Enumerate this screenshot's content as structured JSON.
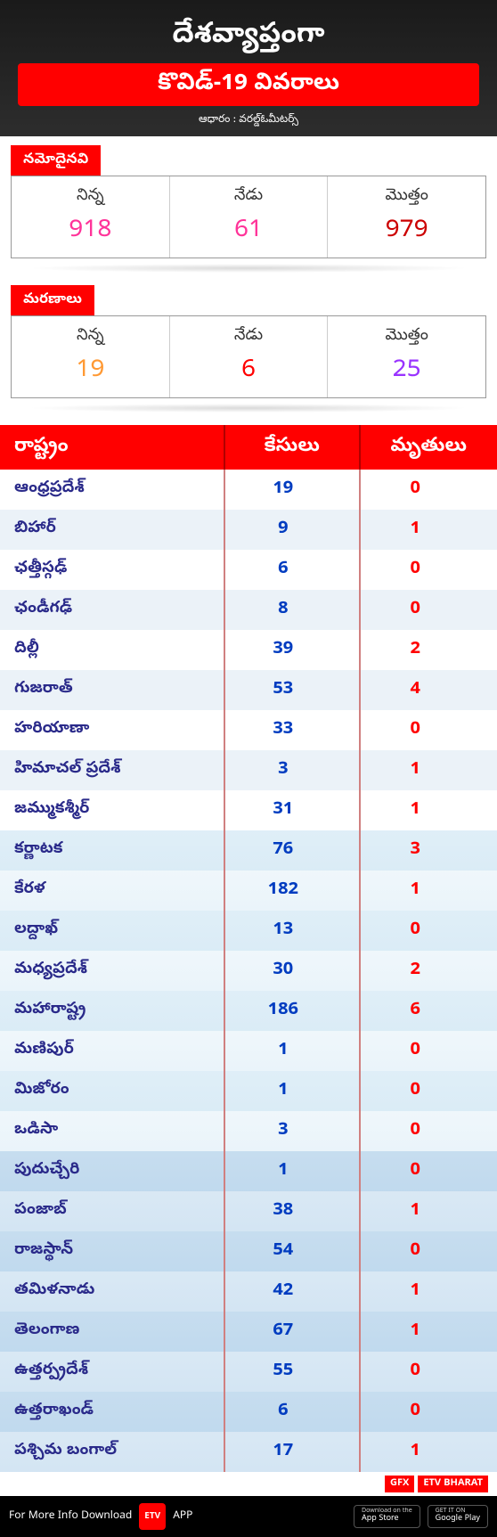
{
  "header": {
    "title": "దేశవ్యాప్తంగా",
    "subtitle": "కొవిడ్-19 వివరాలు",
    "source": "ఆధారం : వరల్డ్ఓమీటర్స్"
  },
  "sections": [
    {
      "tab": "నమోదైనవి",
      "cells": [
        {
          "label": "నిన్న",
          "value": "918",
          "color": "#ff3399"
        },
        {
          "label": "నేడు",
          "value": "61",
          "color": "#ff3399"
        },
        {
          "label": "మొత్తం",
          "value": "979",
          "color": "#cc0000"
        }
      ]
    },
    {
      "tab": "మరణాలు",
      "cells": [
        {
          "label": "నిన్న",
          "value": "19",
          "color": "#ff9933"
        },
        {
          "label": "నేడు",
          "value": "6",
          "color": "#ff0000"
        },
        {
          "label": "మొత్తం",
          "value": "25",
          "color": "#9933ff"
        }
      ]
    }
  ],
  "table": {
    "headers": {
      "state": "రాష్ట్రం",
      "cases": "కేసులు",
      "deaths": "మృతులు"
    },
    "rows": [
      {
        "state": "ఆంధ్రప్రదేశ్",
        "cases": "19",
        "deaths": "0"
      },
      {
        "state": "బిహార్",
        "cases": "9",
        "deaths": "1"
      },
      {
        "state": "ఛత్తీస్గఢ్",
        "cases": "6",
        "deaths": "0"
      },
      {
        "state": "ఛండీగఢ్",
        "cases": "8",
        "deaths": "0"
      },
      {
        "state": "దిల్లీ",
        "cases": "39",
        "deaths": "2"
      },
      {
        "state": "గుజరాత్",
        "cases": "53",
        "deaths": "4"
      },
      {
        "state": "హరియాణా",
        "cases": "33",
        "deaths": "0"
      },
      {
        "state": "హిమాచల్ ప్రదేశ్",
        "cases": "3",
        "deaths": "1"
      },
      {
        "state": "జమ్ముకశ్మీర్",
        "cases": "31",
        "deaths": "1"
      },
      {
        "state": "కర్ణాటక",
        "cases": "76",
        "deaths": "3"
      },
      {
        "state": "కేరళ",
        "cases": "182",
        "deaths": "1"
      },
      {
        "state": "లద్దాఖ్",
        "cases": "13",
        "deaths": "0"
      },
      {
        "state": "మధ్యప్రదేశ్",
        "cases": "30",
        "deaths": "2"
      },
      {
        "state": "మహారాష్ట్ర",
        "cases": "186",
        "deaths": "6"
      },
      {
        "state": "మణిపుర్",
        "cases": "1",
        "deaths": "0"
      },
      {
        "state": "మిజోరం",
        "cases": "1",
        "deaths": "0"
      },
      {
        "state": "ఒడిసా",
        "cases": "3",
        "deaths": "0"
      },
      {
        "state": "పుదుచ్చేరి",
        "cases": "1",
        "deaths": "0"
      },
      {
        "state": "పంజాబ్",
        "cases": "38",
        "deaths": "1"
      },
      {
        "state": "రాజస్థాన్",
        "cases": "54",
        "deaths": "0"
      },
      {
        "state": "తమిళనాడు",
        "cases": "42",
        "deaths": "1"
      },
      {
        "state": "తెలంగాణ",
        "cases": "67",
        "deaths": "1"
      },
      {
        "state": "ఉత్తర్ప్రదేశ్",
        "cases": "55",
        "deaths": "0"
      },
      {
        "state": "ఉత్తరాఖండ్",
        "cases": "6",
        "deaths": "0"
      },
      {
        "state": "పశ్చిమ బంగాల్",
        "cases": "17",
        "deaths": "1"
      }
    ]
  },
  "footer": {
    "gfx": "GFX",
    "brand": "ETV BHARAT",
    "download_text": "For More Info Download",
    "app_label": "APP",
    "app_icon_text": "ETV",
    "appstore_small": "Download on the",
    "appstore": "App Store",
    "play_small": "GET IT ON",
    "play": "Google Play"
  },
  "colors": {
    "header_bg": "#1a1a1a",
    "accent": "#ff0000",
    "cases_text": "#003cc0",
    "deaths_text": "#ff0000",
    "state_text": "#2a2a8a"
  }
}
